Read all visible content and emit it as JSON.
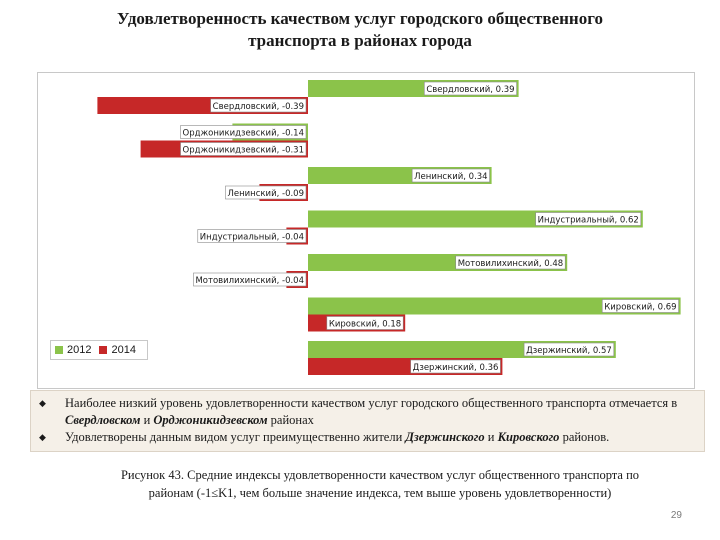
{
  "title_line1": "Удовлетворенность качеством услуг городского общественного",
  "title_line2": "транспорта в районах города",
  "chart_data": {
    "type": "bar",
    "orientation": "horizontal",
    "categories": [
      "Свердловский",
      "Орджоникидзевский",
      "Ленинский",
      "Индустриальный",
      "Мотовилихинский",
      "Кировский",
      "Дзержинский"
    ],
    "series": [
      {
        "name": "2012",
        "color": "#8bc34a",
        "values": [
          0.39,
          -0.14,
          0.34,
          0.62,
          0.48,
          0.69,
          0.57
        ]
      },
      {
        "name": "2014",
        "color": "#c62828",
        "values": [
          -0.39,
          -0.31,
          -0.09,
          -0.04,
          -0.04,
          0.18,
          0.36
        ]
      }
    ],
    "labels": {
      "2012": [
        "Свердловский, 0.39",
        "Орджоникидзевский, -0.14",
        "Ленинский, 0.34",
        "Индустриальный, 0.62",
        "Мотовилихинский, 0.48",
        "Кировский, 0.69",
        "Дзержинский, 0.57"
      ],
      "2014": [
        "Свердловский, -0.39",
        "Орджоникидзевский, -0.31",
        "Ленинский, -0.09",
        "Индустриальный, -0.04",
        "Мотовилихинский, -0.04",
        "Кировский, 0.18",
        "Дзержинский, 0.36"
      ]
    },
    "xlim": [
      -0.72,
      0.72
    ],
    "grid": false,
    "legend_position": "bottom-left"
  },
  "legend": {
    "s1": "2012",
    "s2": "2014"
  },
  "notes": {
    "n1_a": "Наиболее низкий уровень удовлетворенности качеством услуг городского общественного транспорта отмечается в ",
    "n1_b": "Свердловском",
    "n1_c": " и ",
    "n1_d": "Орджоникидзевском",
    "n1_e": " районах",
    "n2_a": "Удовлетворены данным видом услуг преимущественно жители ",
    "n2_b": "Дзержинского",
    "n2_c": " и ",
    "n2_d": "Кировского",
    "n2_e": " районов."
  },
  "caption_line1": "Рисунок 43. Средние индексы удовлетворенности качеством услуг общественного транспорта по",
  "caption_line2": "районам (-1≤K1, чем больше значение индекса, тем выше уровень удовлетворенности)",
  "page_number": "29"
}
